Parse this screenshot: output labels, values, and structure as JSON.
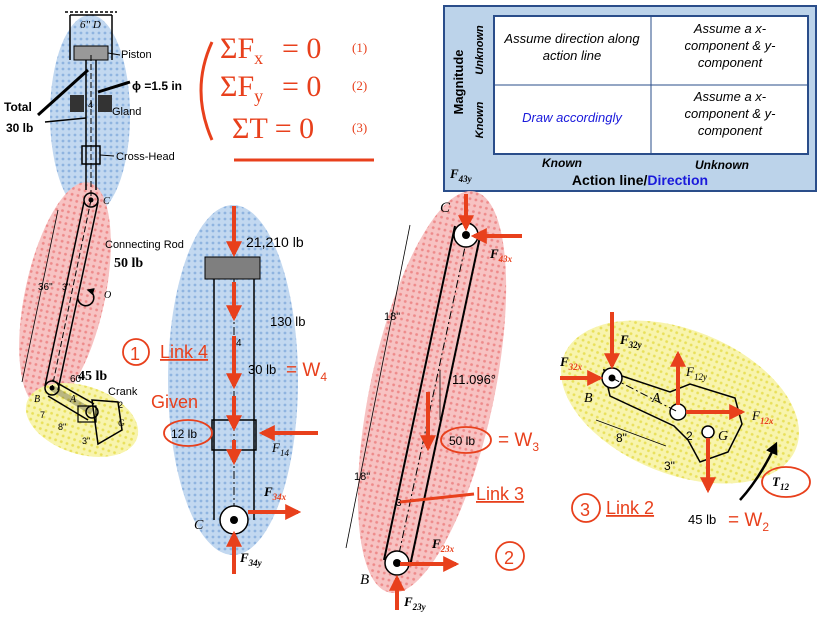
{
  "equations": {
    "eq1": "ΣF",
    "eq1_sub": "x",
    "eq1_rhs": "= 0",
    "eq1_num": "(1)",
    "eq2": "ΣF",
    "eq2_sub": "y",
    "eq2_rhs": "= 0",
    "eq2_num": "(2)",
    "eq3": "ΣT = 0",
    "eq3_num": "(3)"
  },
  "table": {
    "row_header": "Magnitude",
    "row_unknown": "Unknown",
    "row_known": "Known",
    "cell_uk_known": "Assume direction along action line",
    "cell_uk_unknown": "Assume a x-component & y-component",
    "cell_k_known": "Draw accordingly",
    "cell_k_unknown": "Assume a x-component & y-component",
    "col_known": "Known",
    "col_unknown": "Unknown",
    "col_header_1": "Action line/",
    "col_header_2": "Direction"
  },
  "mechanism": {
    "d_label": "6\" D",
    "piston": "Piston",
    "phi": "ϕ =1.5 in",
    "gland": "Gland",
    "total_1": "Total",
    "total_2": "30 lb",
    "crosshead": "Cross-Head",
    "c": "C",
    "conrod": "Connecting Rod",
    "conrod_w": "50 lb",
    "dim36": "36\"",
    "dim3": "3\"",
    "o": "O",
    "crank_w": "45 lb",
    "crank": "Crank",
    "angle60": "60°",
    "b": "B",
    "a": "A",
    "g": "G",
    "two": "2",
    "dim8": "8\"",
    "dim3b": "3\""
  },
  "link4": {
    "force_top": "21,210 lb",
    "f130": "130 lb",
    "num": "4",
    "w4_val": "30 lb",
    "w4": "= W",
    "w4_sub": "4",
    "given": "Given",
    "f12": "12 lb",
    "f14": "F",
    "f14_sub": "14",
    "f34x": "F",
    "f34x_sub": "34x",
    "f34y": "F",
    "f34y_sub": "34y",
    "c": "C",
    "circle": "1",
    "label": "Link 4"
  },
  "link3": {
    "f43y": "F",
    "f43y_sub": "43y",
    "c": "C",
    "f43x": "F",
    "f43x_sub": "43x",
    "dim18a": "18\"",
    "angle": "11.096°",
    "w3_val": "50 lb",
    "w3": "= W",
    "w3_sub": "3",
    "dim18b": "18\"",
    "num": "3",
    "label": "Link 3",
    "f23x": "F",
    "f23x_sub": "23x",
    "b": "B",
    "f23y": "F",
    "f23y_sub": "23y",
    "circle": "2"
  },
  "link2": {
    "f32y": "F",
    "f32y_sub": "32y",
    "f32x": "F",
    "f32x_sub": "32x",
    "f12y": "F",
    "f12y_sub": "12y",
    "b": "B",
    "a": "A",
    "f12x": "F",
    "f12x_sub": "12x",
    "dim8": "8\"",
    "two": "2",
    "g": "G",
    "dim3": "3\"",
    "t12": "T",
    "t12_sub": "12",
    "circle": "3",
    "label": "Link 2",
    "w2_val": "45 lb",
    "w2": "= W",
    "w2_sub": "2"
  },
  "colors": {
    "accent_red": "#e8401c",
    "blue_text": "#1a1adb",
    "table_bg": "#bcd3ea",
    "blob_blue": "#a9c8ea",
    "blob_red": "#f2a0a0",
    "blob_yellow": "#f5f08a"
  }
}
